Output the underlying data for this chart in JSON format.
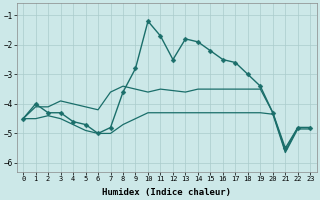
{
  "xlabel": "Humidex (Indice chaleur)",
  "ylabel": "",
  "bg_color": "#cce8e8",
  "grid_color": "#aacccc",
  "line_color": "#1a6e6a",
  "xlim": [
    -0.5,
    23.5
  ],
  "ylim": [
    -6.3,
    -0.6
  ],
  "yticks": [
    -6,
    -5,
    -4,
    -3,
    -2,
    -1
  ],
  "xticks": [
    0,
    1,
    2,
    3,
    4,
    5,
    6,
    7,
    8,
    9,
    10,
    11,
    12,
    13,
    14,
    15,
    16,
    17,
    18,
    19,
    20,
    21,
    22,
    23
  ],
  "series": [
    {
      "x": [
        0,
        1,
        2,
        3,
        4,
        5,
        6,
        7,
        8,
        9,
        10,
        11,
        12,
        13,
        14,
        15,
        16,
        17,
        18,
        19,
        20,
        21,
        22,
        23
      ],
      "y": [
        -4.5,
        -4.0,
        -4.3,
        -4.3,
        -4.6,
        -4.7,
        -5.0,
        -4.8,
        -3.6,
        -2.8,
        -1.2,
        -1.7,
        -2.5,
        -1.8,
        -1.9,
        -2.2,
        -2.5,
        -2.6,
        -3.0,
        -3.4,
        -4.3,
        -5.5,
        -4.8,
        -4.8
      ],
      "marker": "D",
      "markersize": 2.5,
      "linewidth": 1.0
    },
    {
      "x": [
        0,
        1,
        2,
        3,
        4,
        5,
        6,
        7,
        8,
        9,
        10,
        11,
        12,
        13,
        14,
        15,
        16,
        17,
        18,
        19,
        20,
        21,
        22,
        23
      ],
      "y": [
        -4.5,
        -4.1,
        -4.1,
        -3.9,
        -4.0,
        -4.1,
        -4.2,
        -3.6,
        -3.4,
        -3.5,
        -3.6,
        -3.5,
        -3.55,
        -3.6,
        -3.5,
        -3.5,
        -3.5,
        -3.5,
        -3.5,
        -3.5,
        -4.3,
        -5.6,
        -4.8,
        -4.8
      ],
      "marker": null,
      "linewidth": 0.9
    },
    {
      "x": [
        0,
        1,
        2,
        3,
        4,
        5,
        6,
        7,
        8,
        9,
        10,
        11,
        12,
        13,
        14,
        15,
        16,
        17,
        18,
        19,
        20,
        21,
        22,
        23
      ],
      "y": [
        -4.5,
        -4.5,
        -4.4,
        -4.5,
        -4.7,
        -4.9,
        -5.0,
        -5.0,
        -4.7,
        -4.5,
        -4.3,
        -4.3,
        -4.3,
        -4.3,
        -4.3,
        -4.3,
        -4.3,
        -4.3,
        -4.3,
        -4.3,
        -4.35,
        -5.65,
        -4.85,
        -4.85
      ],
      "marker": null,
      "linewidth": 0.9
    }
  ]
}
